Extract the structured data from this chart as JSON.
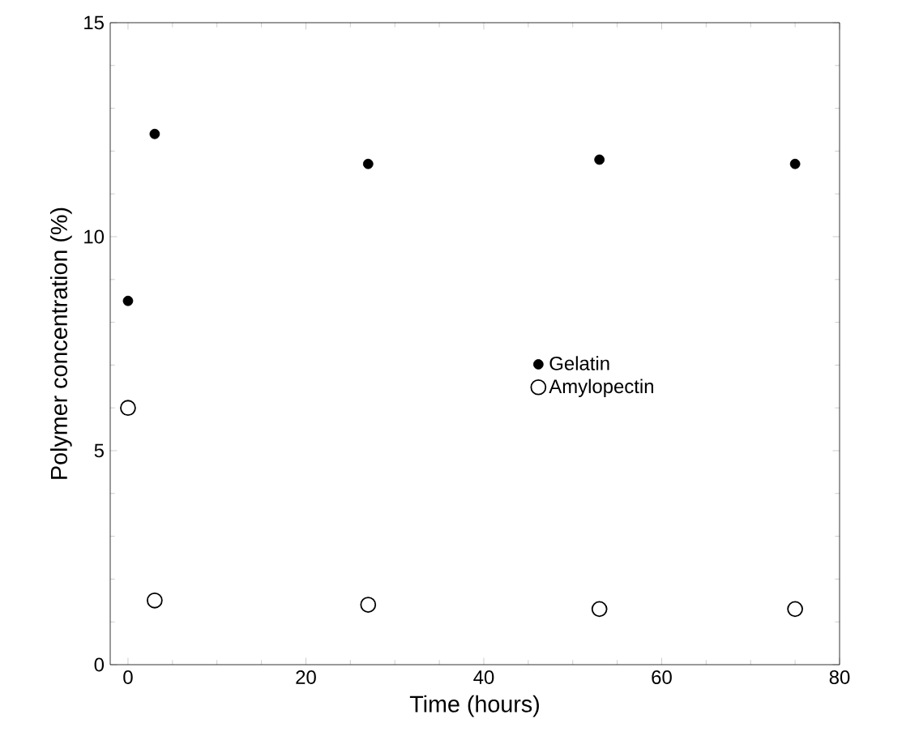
{
  "chart_data": {
    "type": "scatter",
    "xlabel": "Time (hours)",
    "ylabel": "Polymer concentration (%)",
    "xlim": [
      -2,
      80
    ],
    "xticks": [
      0,
      20,
      40,
      60,
      80
    ],
    "ylim": [
      0,
      15
    ],
    "yticks": [
      0,
      5,
      10,
      15
    ],
    "legend": "right",
    "grid": false,
    "series": [
      {
        "name": "Gelatin",
        "color": "#000000",
        "marker": "circle",
        "x": [
          0,
          3,
          27,
          53,
          75
        ],
        "values": [
          8.5,
          12.4,
          11.7,
          11.8,
          11.7
        ]
      },
      {
        "name": "Amylopectin",
        "color": "#000000",
        "marker": "circle-open",
        "x": [
          0,
          3,
          27,
          53,
          75
        ],
        "values": [
          6.0,
          1.5,
          1.4,
          1.3,
          1.3
        ]
      }
    ]
  }
}
